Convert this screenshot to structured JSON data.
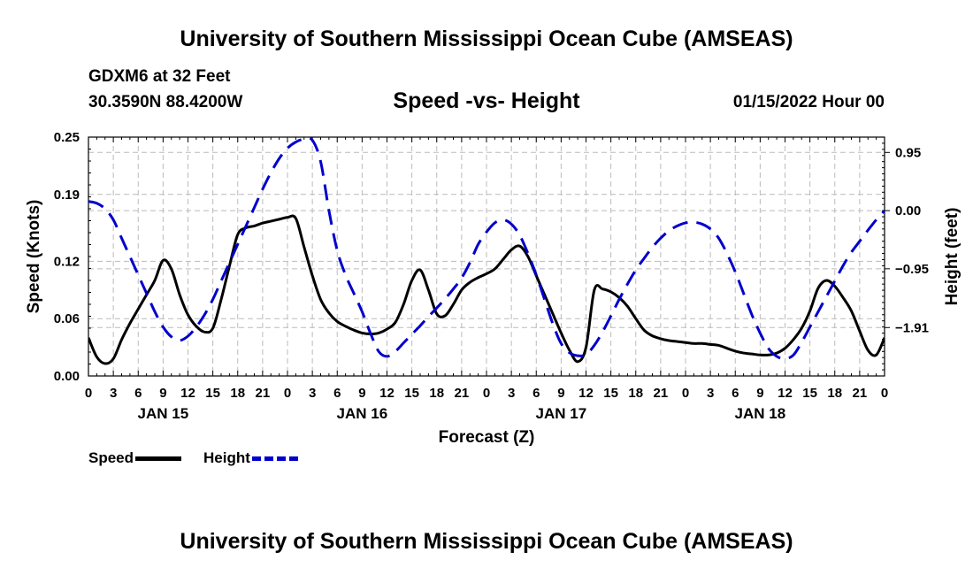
{
  "header": {
    "title_top": "University of Southern Mississippi Ocean Cube (AMSEAS)",
    "title_bottom": "University of Southern Mississippi Ocean Cube (AMSEAS)",
    "station": "GDXM6 at 32 Feet",
    "coords": "30.3590N  88.4200W",
    "chart_title": "Speed -vs- Height",
    "datetime": "01/15/2022 Hour 00"
  },
  "legend": {
    "speed_label": "Speed",
    "height_label": "Height"
  },
  "colors": {
    "speed": "#000000",
    "height": "#0000cc",
    "grid": "#bbbbbb"
  },
  "chart_data": {
    "type": "line",
    "title": "Speed -vs- Height",
    "xlabel": "Forecast (Z)",
    "ylabel": "Speed (Knots)",
    "y2label": "Height (feet)",
    "xlim": [
      0,
      96
    ],
    "ylim": [
      0,
      0.25
    ],
    "y2lim": [
      -2.7,
      1.2
    ],
    "y_ticks": [
      0.0,
      0.06,
      0.12,
      0.19,
      0.25
    ],
    "y_tick_labels": [
      "0.00",
      "0.06",
      "0.12",
      "0.19",
      "0.25"
    ],
    "y2_ticks": [
      0.95,
      0.0,
      -0.95,
      -1.91
    ],
    "y2_tick_labels": [
      "0.95",
      "0.00",
      "−0.95",
      "−1.91"
    ],
    "x_ticks": [
      0,
      3,
      6,
      9,
      12,
      15,
      18,
      21,
      24,
      27,
      30,
      33,
      36,
      39,
      42,
      45,
      48,
      51,
      54,
      57,
      60,
      63,
      66,
      69,
      72,
      75,
      78,
      81,
      84,
      87,
      90,
      93,
      96
    ],
    "x_tick_labels": [
      "0",
      "3",
      "6",
      "9",
      "12",
      "15",
      "18",
      "21",
      "0",
      "3",
      "6",
      "9",
      "12",
      "15",
      "18",
      "21",
      "0",
      "3",
      "6",
      "9",
      "12",
      "15",
      "18",
      "21",
      "0",
      "3",
      "6",
      "9",
      "12",
      "15",
      "18",
      "21",
      "0"
    ],
    "day_labels": [
      {
        "hour": 9,
        "label": "JAN 15"
      },
      {
        "hour": 33,
        "label": "JAN 16"
      },
      {
        "hour": 57,
        "label": "JAN 17"
      },
      {
        "hour": 81,
        "label": "JAN 18"
      }
    ],
    "grid": true,
    "series": [
      {
        "name": "Speed",
        "axis": "left",
        "x": [
          0,
          1,
          2,
          3,
          4,
          5,
          6,
          7,
          8,
          9,
          10,
          11,
          12,
          13,
          14,
          15,
          16,
          17,
          18,
          19,
          20,
          21,
          22,
          23,
          24,
          25,
          26,
          27,
          28,
          29,
          30,
          31,
          32,
          33,
          34,
          35,
          36,
          37,
          38,
          39,
          40,
          41,
          42,
          43,
          44,
          45,
          46,
          47,
          48,
          49,
          50,
          51,
          52,
          53,
          54,
          55,
          56,
          57,
          58,
          59,
          60,
          61,
          62,
          63,
          64,
          65,
          66,
          67,
          68,
          69,
          70,
          71,
          72,
          73,
          74,
          75,
          76,
          77,
          78,
          79,
          80,
          81,
          82,
          83,
          84,
          85,
          86,
          87,
          88,
          89,
          90,
          91,
          92,
          93,
          94,
          95,
          96
        ],
        "values": [
          0.04,
          0.02,
          0.013,
          0.018,
          0.038,
          0.055,
          0.07,
          0.085,
          0.1,
          0.121,
          0.112,
          0.085,
          0.064,
          0.052,
          0.046,
          0.05,
          0.08,
          0.115,
          0.148,
          0.155,
          0.157,
          0.16,
          0.162,
          0.164,
          0.166,
          0.165,
          0.135,
          0.105,
          0.08,
          0.066,
          0.057,
          0.052,
          0.048,
          0.045,
          0.044,
          0.045,
          0.049,
          0.056,
          0.075,
          0.1,
          0.111,
          0.09,
          0.065,
          0.063,
          0.075,
          0.09,
          0.098,
          0.103,
          0.107,
          0.112,
          0.122,
          0.132,
          0.136,
          0.125,
          0.105,
          0.085,
          0.065,
          0.045,
          0.027,
          0.015,
          0.03,
          0.09,
          0.091,
          0.088,
          0.082,
          0.073,
          0.06,
          0.048,
          0.042,
          0.039,
          0.037,
          0.036,
          0.035,
          0.034,
          0.034,
          0.033,
          0.032,
          0.029,
          0.026,
          0.024,
          0.023,
          0.022,
          0.022,
          0.024,
          0.029,
          0.038,
          0.05,
          0.068,
          0.092,
          0.1,
          0.094,
          0.082,
          0.068,
          0.047,
          0.027,
          0.022,
          0.04
        ]
      },
      {
        "name": "Height",
        "axis": "right",
        "x": [
          0,
          1,
          2,
          3,
          4,
          5,
          6,
          7,
          8,
          9,
          10,
          11,
          12,
          13,
          14,
          15,
          16,
          17,
          18,
          19,
          20,
          21,
          22,
          23,
          24,
          25,
          26,
          27,
          28,
          29,
          30,
          31,
          32,
          33,
          34,
          35,
          36,
          37,
          38,
          39,
          40,
          41,
          42,
          43,
          44,
          45,
          46,
          47,
          48,
          49,
          50,
          51,
          52,
          53,
          54,
          55,
          56,
          57,
          58,
          59,
          60,
          61,
          62,
          63,
          64,
          65,
          66,
          67,
          68,
          69,
          70,
          71,
          72,
          73,
          74,
          75,
          76,
          77,
          78,
          79,
          80,
          81,
          82,
          83,
          84,
          85,
          86,
          87,
          88,
          89,
          90,
          91,
          92,
          93,
          94,
          95,
          96
        ],
        "values": [
          0.15,
          0.12,
          0.03,
          -0.15,
          -0.45,
          -0.75,
          -1.05,
          -1.35,
          -1.65,
          -1.9,
          -2.06,
          -2.12,
          -2.05,
          -1.9,
          -1.7,
          -1.45,
          -1.15,
          -0.85,
          -0.55,
          -0.25,
          0.05,
          0.35,
          0.62,
          0.85,
          1.02,
          1.12,
          1.17,
          1.15,
          0.8,
          0.0,
          -0.65,
          -1.05,
          -1.35,
          -1.65,
          -2.0,
          -2.3,
          -2.38,
          -2.3,
          -2.16,
          -2.02,
          -1.88,
          -1.73,
          -1.59,
          -1.44,
          -1.28,
          -1.1,
          -0.85,
          -0.55,
          -0.35,
          -0.2,
          -0.15,
          -0.22,
          -0.4,
          -0.7,
          -1.05,
          -1.45,
          -1.85,
          -2.17,
          -2.32,
          -2.37,
          -2.35,
          -2.2,
          -1.98,
          -1.72,
          -1.45,
          -1.2,
          -0.97,
          -0.78,
          -0.6,
          -0.45,
          -0.33,
          -0.25,
          -0.2,
          -0.19,
          -0.22,
          -0.3,
          -0.45,
          -0.7,
          -1.0,
          -1.35,
          -1.7,
          -2.0,
          -2.25,
          -2.38,
          -2.42,
          -2.36,
          -2.15,
          -1.9,
          -1.65,
          -1.4,
          -1.15,
          -0.9,
          -0.68,
          -0.5,
          -0.32,
          -0.15,
          0.0
        ]
      }
    ]
  }
}
